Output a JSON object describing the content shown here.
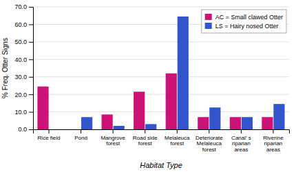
{
  "chart_data": {
    "type": "bar",
    "categories": [
      "Rice field",
      "Pond",
      "Mangrove\nforest",
      "Road side\nforest",
      "Melaleuca\nforest",
      "Deteriorate\nMelaleuca\nforest",
      "Canal’ s\nriparian\nareas",
      "Riverine\nriparian\nareas"
    ],
    "series": [
      {
        "name": "AC = Small clawed Otter",
        "color": "#CC1177",
        "values": [
          24.5,
          0.0,
          8.5,
          21.5,
          32.0,
          7.0,
          7.0,
          7.0
        ]
      },
      {
        "name": "LS = Hairy nosed Otter",
        "color": "#3355CC",
        "values": [
          0.0,
          7.0,
          2.0,
          3.0,
          64.5,
          12.5,
          7.0,
          14.5
        ]
      }
    ],
    "xlabel": "Habitat Type",
    "ylabel": "% Freq. Otter Signs",
    "ylim": [
      0,
      70
    ],
    "yticks": [
      {
        "value": 0,
        "label": "0.0"
      },
      {
        "value": 10,
        "label": "10.0"
      },
      {
        "value": 20,
        "label": "20.0"
      },
      {
        "value": 30,
        "label": "30.0"
      },
      {
        "value": 40,
        "label": "40.0"
      },
      {
        "value": 50,
        "label": "50.0"
      },
      {
        "value": 60,
        "label": "60.0"
      },
      {
        "value": 70,
        "label": "70.0"
      }
    ],
    "grid": true,
    "legend": "upper right"
  }
}
